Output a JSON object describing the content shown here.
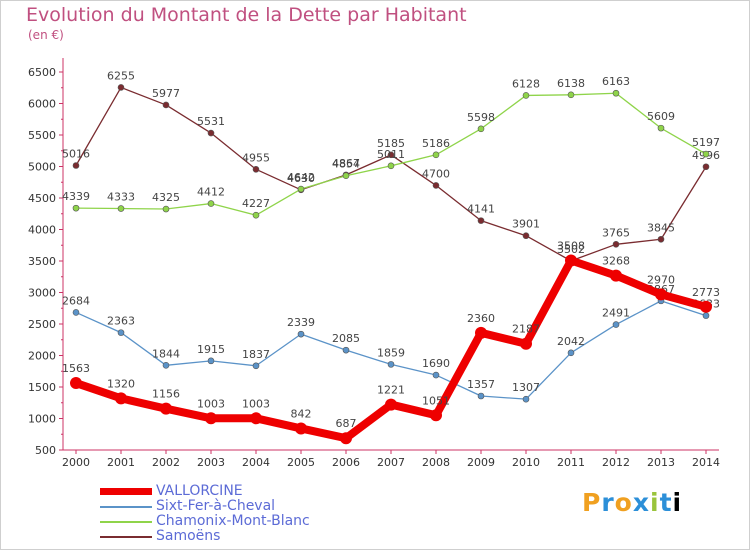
{
  "title": "Evolution du Montant de la Dette par Habitant",
  "unit": "(en €)",
  "logo": "Proxiti",
  "chart_data": {
    "type": "line",
    "x": [
      "2000",
      "2001",
      "2002",
      "2003",
      "2004",
      "2005",
      "2006",
      "2007",
      "2008",
      "2009",
      "2010",
      "2011",
      "2012",
      "2013",
      "2014"
    ],
    "ylim": [
      500,
      6500
    ],
    "yticks": [
      500,
      1000,
      1500,
      2000,
      2500,
      3000,
      3500,
      4000,
      4500,
      5000,
      5500,
      6000,
      6500
    ],
    "grid": false,
    "legend_position": "bottom-left",
    "series": [
      {
        "name": "VALLORCINE",
        "color": "#ee0000",
        "values": [
          1563,
          1320,
          1156,
          1003,
          1003,
          842,
          687,
          1221,
          1051,
          2360,
          2187,
          3508,
          3268,
          2970,
          2773
        ]
      },
      {
        "name": "Sixt-Fer-à-Cheval",
        "color": "#5b93c8",
        "values": [
          2684,
          2363,
          1844,
          1915,
          1837,
          2339,
          2085,
          1859,
          1690,
          1357,
          1307,
          2042,
          2491,
          2867,
          2633
        ]
      },
      {
        "name": "Chamonix-Mont-Blanc",
        "color": "#8fd44a",
        "values": [
          4339,
          4333,
          4325,
          4412,
          4227,
          4642,
          4854,
          5011,
          5186,
          5598,
          6128,
          6138,
          6163,
          5609,
          5197
        ]
      },
      {
        "name": "Samoëns",
        "color": "#7a2c30",
        "values": [
          5016,
          6255,
          5977,
          5531,
          4955,
          4630,
          4867,
          5185,
          4700,
          4141,
          3901,
          3502,
          3765,
          3845,
          4996
        ]
      }
    ]
  }
}
